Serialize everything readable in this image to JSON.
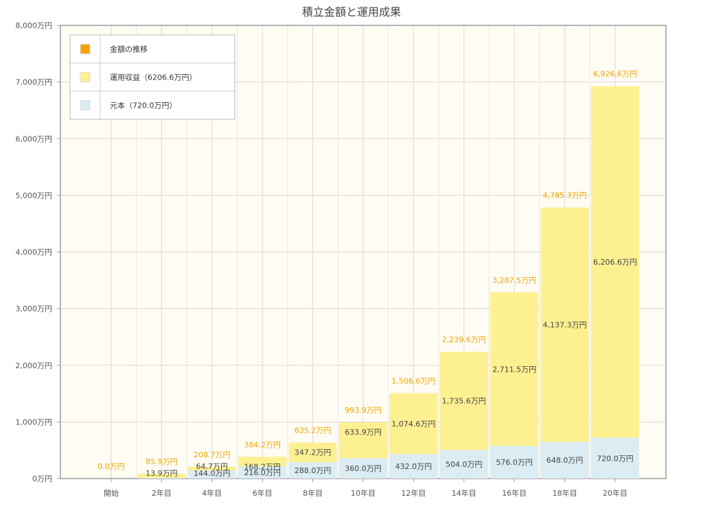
{
  "chart_data": {
    "type": "bar",
    "title": "積立金額と運用成果",
    "categories": [
      "開始",
      "2年目",
      "4年目",
      "6年目",
      "8年目",
      "10年目",
      "12年目",
      "14年目",
      "16年目",
      "18年目",
      "20年目"
    ],
    "series": [
      {
        "name": "元本（720.0万円）",
        "color": "#dbecf3",
        "values": [
          0,
          13.9,
          144.0,
          216.0,
          288.0,
          360.0,
          432.0,
          504.0,
          576.0,
          648.0,
          720.0
        ],
        "labels": [
          "",
          "13.9万円",
          "144.0万円",
          "216.0万円",
          "288.0万円",
          "360.0万円",
          "432.0万円",
          "504.0万円",
          "576.0万円",
          "648.0万円",
          "720.0万円"
        ]
      },
      {
        "name": "運用収益（6206.6万円）",
        "color": "#fdf091",
        "values": [
          0,
          72.0,
          64.7,
          168.2,
          347.2,
          633.9,
          1074.6,
          1735.6,
          2711.5,
          4137.3,
          6206.6
        ],
        "labels": [
          "",
          "",
          "64.7万円",
          "168.2万円",
          "347.2万円",
          "633.9万円",
          "1,074.6万円",
          "1,735.6万円",
          "2,711.5万円",
          "4,137.3万円",
          "6,206.6万円"
        ]
      }
    ],
    "totals": {
      "name": "金額の推移",
      "color": "#f5a300",
      "values": [
        0.0,
        85.9,
        208.7,
        384.2,
        635.2,
        993.9,
        1506.6,
        2239.6,
        3287.5,
        4785.3,
        6926.6
      ],
      "labels": [
        "0.0万円",
        "85.9万円",
        "208.7万円",
        "384.2万円",
        "635.2万円",
        "993.9万円",
        "1,506.6万円",
        "2,239.6万円",
        "3,287.5万円",
        "4,785.3万円",
        "6,926.6万円"
      ]
    },
    "y_ticks": [
      0,
      1000,
      2000,
      3000,
      4000,
      5000,
      6000,
      7000,
      8000
    ],
    "y_tick_labels": [
      "0万円",
      "1,000万円",
      "2,000万円",
      "3,000万円",
      "4,000万円",
      "5,000万円",
      "6,000万円",
      "7,000万円",
      "8,000万円"
    ],
    "ylim": [
      0,
      8000
    ],
    "grid": true,
    "legend_position": "top-left",
    "plot_background": "#fffcf3"
  }
}
